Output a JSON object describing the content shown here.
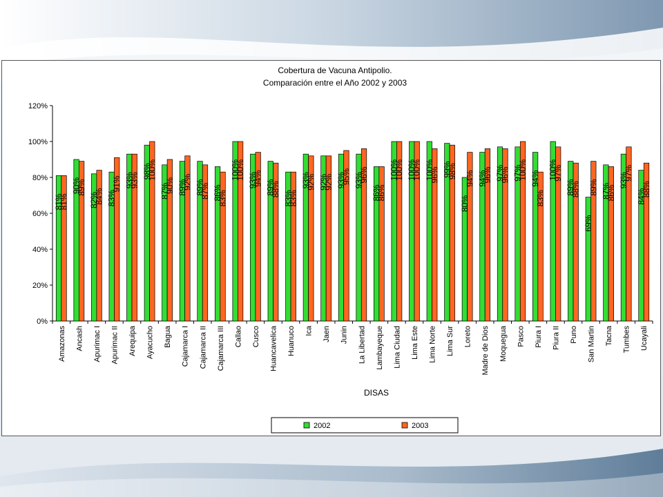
{
  "chart_data": {
    "type": "bar",
    "title": [
      "Cobertura de Vacuna Antipolio.",
      "Comparación entre el Año 2002 y 2003"
    ],
    "xlabel": "DISAS",
    "ylabel": "",
    "ylim": [
      0,
      1.2
    ],
    "yticks": [
      "0%",
      "20%",
      "40%",
      "60%",
      "80%",
      "100%",
      "120%"
    ],
    "grid": false,
    "legend": "bottom-center",
    "categories": [
      "Amazonas",
      "Ancash",
      "Apurimac I",
      "Apurimac II",
      "Arequipa",
      "Ayacucho",
      "Bagua",
      "Cajamarca I",
      "Cajamarca II",
      "Cajamarca III",
      "Callao",
      "Cusco",
      "Huancavelica",
      "Huanuco",
      "Ica",
      "Jaen",
      "Junin",
      "La Libertad",
      "Lambayeque",
      "Lima Ciudad",
      "Lima Este",
      "Lima Norte",
      "Lima Sur",
      "Loreto",
      "Madre de Dios",
      "Moquegua",
      "Pasco",
      "Piura I",
      "Piura II",
      "Puno",
      "San Martin",
      "Tacna",
      "Tumbes",
      "Ucayali"
    ],
    "series": [
      {
        "name": "2002",
        "color": "#33dd33",
        "values": [
          0.81,
          0.9,
          0.82,
          0.83,
          0.93,
          0.98,
          0.87,
          0.89,
          0.89,
          0.86,
          1.0,
          0.93,
          0.89,
          0.83,
          0.93,
          0.92,
          0.93,
          0.93,
          0.86,
          1.0,
          1.0,
          1.0,
          0.99,
          0.8,
          0.94,
          0.97,
          0.97,
          0.94,
          1.0,
          0.89,
          0.69,
          0.87,
          0.93,
          0.84
        ],
        "labels": [
          "81%",
          "90%",
          "82%",
          "83%",
          "93%",
          "98%",
          "87%",
          "89%",
          "89%",
          "86%",
          "100%",
          "93%",
          "89%",
          "83%",
          "93%",
          "92%",
          "93%",
          "93%",
          "86%",
          "100%",
          "100%",
          "100%",
          "99%",
          "80%",
          "94%",
          "97%",
          "97%",
          "94%",
          "100%",
          "89%",
          "69%",
          "87%",
          "93%",
          "84%"
        ]
      },
      {
        "name": "2003",
        "color": "#ff6622",
        "values": [
          0.81,
          0.89,
          0.84,
          0.91,
          0.93,
          1.0,
          0.9,
          0.92,
          0.87,
          0.83,
          1.0,
          0.94,
          0.88,
          0.83,
          0.92,
          0.92,
          0.95,
          0.96,
          0.86,
          1.0,
          1.0,
          0.96,
          0.98,
          0.94,
          0.96,
          0.96,
          1.0,
          0.83,
          0.97,
          0.88,
          0.89,
          0.86,
          0.97,
          0.88
        ],
        "labels": [
          "81%",
          "89%",
          "84%",
          "91%",
          "93%",
          "100%",
          "90%",
          "92%",
          "87%",
          "83%",
          "100%",
          "94%",
          "88%",
          "83%",
          "92%",
          "92%",
          "95%",
          "96%",
          "86%",
          "100%",
          "100%",
          "96%",
          "98%",
          "94%",
          "96%",
          "96%",
          "100%",
          "83%",
          "97%",
          "88%",
          "89%",
          "86%",
          "97%",
          "88%"
        ]
      }
    ]
  }
}
